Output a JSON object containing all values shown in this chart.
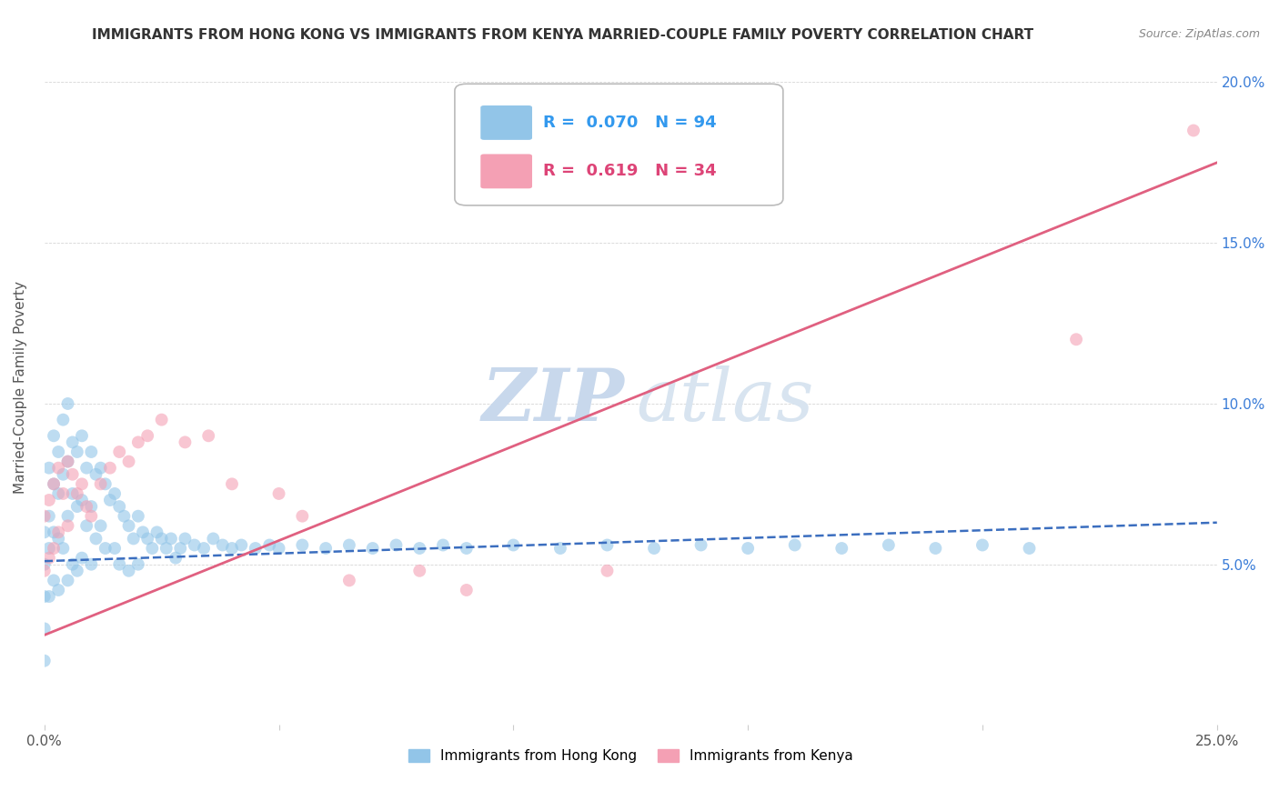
{
  "title": "IMMIGRANTS FROM HONG KONG VS IMMIGRANTS FROM KENYA MARRIED-COUPLE FAMILY POVERTY CORRELATION CHART",
  "source_text": "Source: ZipAtlas.com",
  "ylabel": "Married-Couple Family Poverty",
  "xlim": [
    0.0,
    0.25
  ],
  "ylim": [
    0.0,
    0.21
  ],
  "hk_R": 0.07,
  "hk_N": 94,
  "kenya_R": 0.619,
  "kenya_N": 34,
  "hk_color": "#92C5E8",
  "kenya_color": "#F4A0B4",
  "hk_line_color": "#3B6EBF",
  "kenya_line_color": "#E06080",
  "legend_label_hk": "Immigrants from Hong Kong",
  "legend_label_kenya": "Immigrants from Kenya",
  "hk_line_x0": 0.0,
  "hk_line_x1": 0.25,
  "hk_line_y0": 0.051,
  "hk_line_y1": 0.063,
  "kenya_line_x0": 0.0,
  "kenya_line_x1": 0.25,
  "kenya_line_y0": 0.028,
  "kenya_line_y1": 0.175,
  "hk_scatter_x": [
    0.0,
    0.0,
    0.0,
    0.0,
    0.0,
    0.001,
    0.001,
    0.001,
    0.001,
    0.002,
    0.002,
    0.002,
    0.002,
    0.003,
    0.003,
    0.003,
    0.003,
    0.004,
    0.004,
    0.004,
    0.005,
    0.005,
    0.005,
    0.005,
    0.006,
    0.006,
    0.006,
    0.007,
    0.007,
    0.007,
    0.008,
    0.008,
    0.008,
    0.009,
    0.009,
    0.01,
    0.01,
    0.01,
    0.011,
    0.011,
    0.012,
    0.012,
    0.013,
    0.013,
    0.014,
    0.015,
    0.015,
    0.016,
    0.016,
    0.017,
    0.018,
    0.018,
    0.019,
    0.02,
    0.02,
    0.021,
    0.022,
    0.023,
    0.024,
    0.025,
    0.026,
    0.027,
    0.028,
    0.029,
    0.03,
    0.032,
    0.034,
    0.036,
    0.038,
    0.04,
    0.042,
    0.045,
    0.048,
    0.05,
    0.055,
    0.06,
    0.065,
    0.07,
    0.075,
    0.08,
    0.085,
    0.09,
    0.1,
    0.11,
    0.12,
    0.13,
    0.14,
    0.15,
    0.16,
    0.17,
    0.18,
    0.19,
    0.2,
    0.21
  ],
  "hk_scatter_y": [
    0.06,
    0.05,
    0.04,
    0.03,
    0.02,
    0.08,
    0.065,
    0.055,
    0.04,
    0.09,
    0.075,
    0.06,
    0.045,
    0.085,
    0.072,
    0.058,
    0.042,
    0.095,
    0.078,
    0.055,
    0.1,
    0.082,
    0.065,
    0.045,
    0.088,
    0.072,
    0.05,
    0.085,
    0.068,
    0.048,
    0.09,
    0.07,
    0.052,
    0.08,
    0.062,
    0.085,
    0.068,
    0.05,
    0.078,
    0.058,
    0.08,
    0.062,
    0.075,
    0.055,
    0.07,
    0.072,
    0.055,
    0.068,
    0.05,
    0.065,
    0.062,
    0.048,
    0.058,
    0.065,
    0.05,
    0.06,
    0.058,
    0.055,
    0.06,
    0.058,
    0.055,
    0.058,
    0.052,
    0.055,
    0.058,
    0.056,
    0.055,
    0.058,
    0.056,
    0.055,
    0.056,
    0.055,
    0.056,
    0.055,
    0.056,
    0.055,
    0.056,
    0.055,
    0.056,
    0.055,
    0.056,
    0.055,
    0.056,
    0.055,
    0.056,
    0.055,
    0.056,
    0.055,
    0.056,
    0.055,
    0.056,
    0.055,
    0.056,
    0.055
  ],
  "kenya_scatter_x": [
    0.0,
    0.0,
    0.001,
    0.001,
    0.002,
    0.002,
    0.003,
    0.003,
    0.004,
    0.005,
    0.005,
    0.006,
    0.007,
    0.008,
    0.009,
    0.01,
    0.012,
    0.014,
    0.016,
    0.018,
    0.02,
    0.022,
    0.025,
    0.03,
    0.035,
    0.04,
    0.05,
    0.055,
    0.065,
    0.08,
    0.09,
    0.12,
    0.22,
    0.245
  ],
  "kenya_scatter_y": [
    0.065,
    0.048,
    0.07,
    0.052,
    0.075,
    0.055,
    0.08,
    0.06,
    0.072,
    0.082,
    0.062,
    0.078,
    0.072,
    0.075,
    0.068,
    0.065,
    0.075,
    0.08,
    0.085,
    0.082,
    0.088,
    0.09,
    0.095,
    0.088,
    0.09,
    0.075,
    0.072,
    0.065,
    0.045,
    0.048,
    0.042,
    0.048,
    0.12,
    0.185
  ]
}
